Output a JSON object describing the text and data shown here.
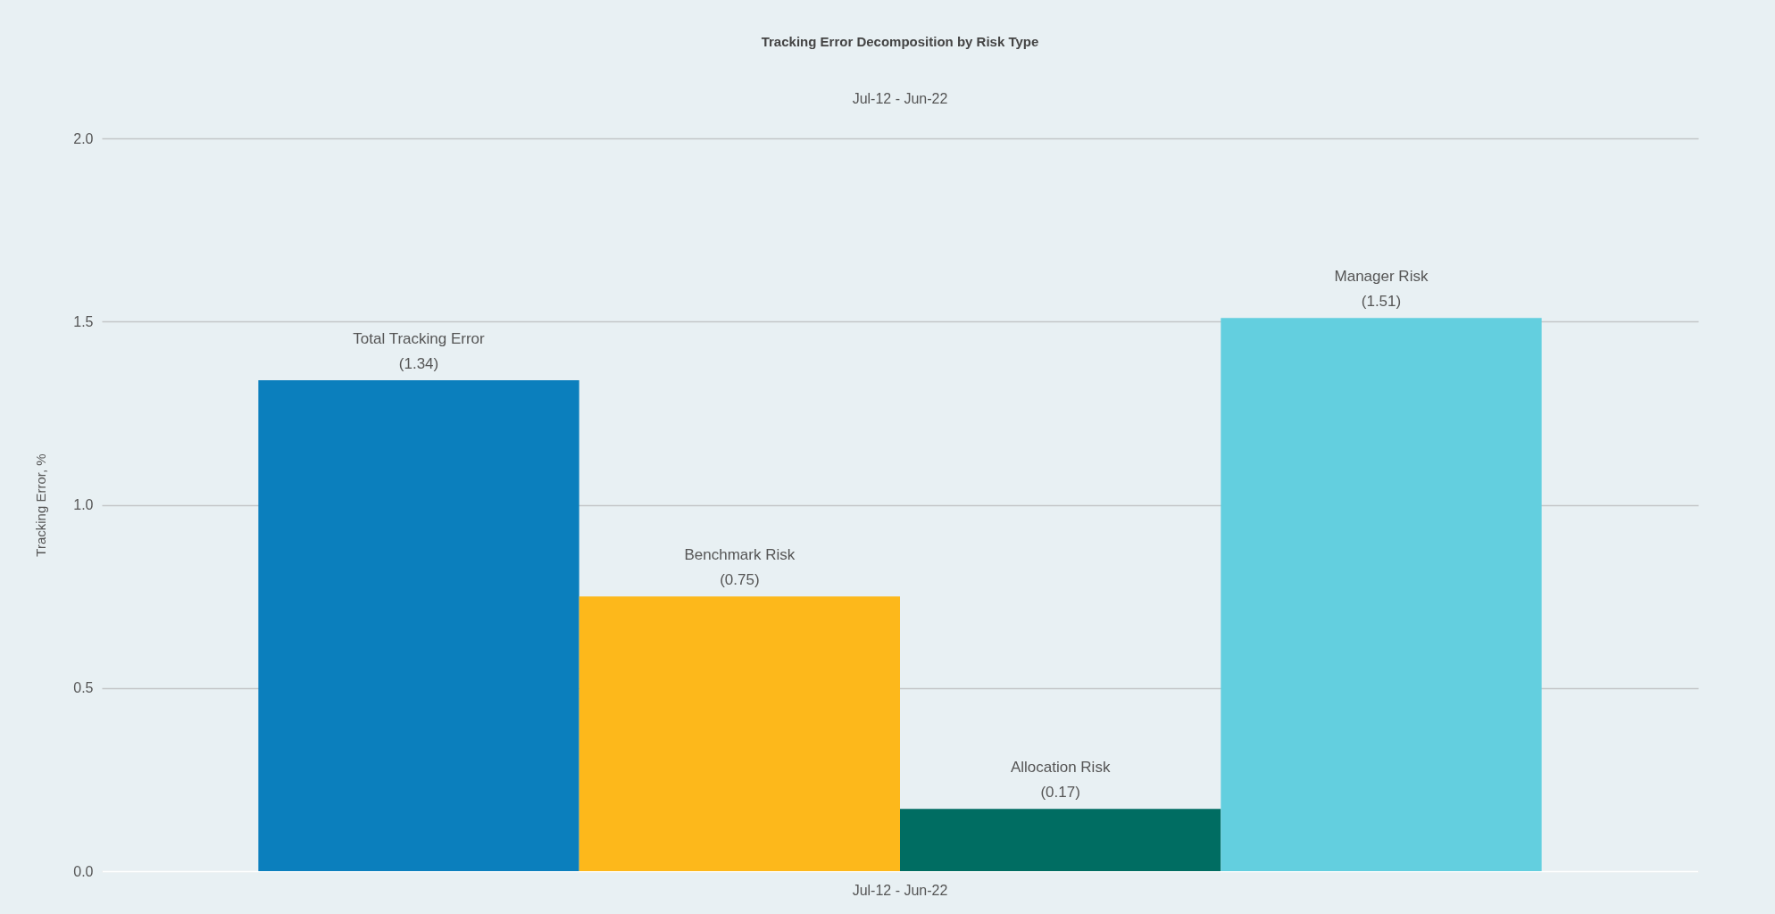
{
  "chart_data": {
    "type": "bar",
    "title": "Tracking Error Decomposition by Risk Type",
    "subtitle": "Jul-12 - Jun-22",
    "ylabel": "Tracking Error, %",
    "categories": [
      "Jul-12 - Jun-22"
    ],
    "series": [
      {
        "name": "Total Tracking Error",
        "color": "#0b7fbd",
        "values": [
          1.34
        ],
        "value_labels": [
          "(1.34)"
        ]
      },
      {
        "name": "Benchmark Risk",
        "color": "#fdb81b",
        "values": [
          0.75
        ],
        "value_labels": [
          "(0.75)"
        ]
      },
      {
        "name": "Allocation Risk",
        "color": "#006d62",
        "values": [
          0.17
        ],
        "value_labels": [
          "(0.17)"
        ]
      },
      {
        "name": "Manager Risk",
        "color": "#63cfdf",
        "values": [
          1.51
        ],
        "value_labels": [
          "(1.51)"
        ]
      }
    ],
    "ylim": [
      0,
      2
    ],
    "yticks": [
      {
        "value": 0,
        "label": "0.0"
      },
      {
        "value": 0.5,
        "label": "0.5"
      },
      {
        "value": 1,
        "label": "1.0"
      },
      {
        "value": 1.5,
        "label": "1.5"
      },
      {
        "value": 2,
        "label": "2.0"
      }
    ],
    "grid": "y"
  }
}
